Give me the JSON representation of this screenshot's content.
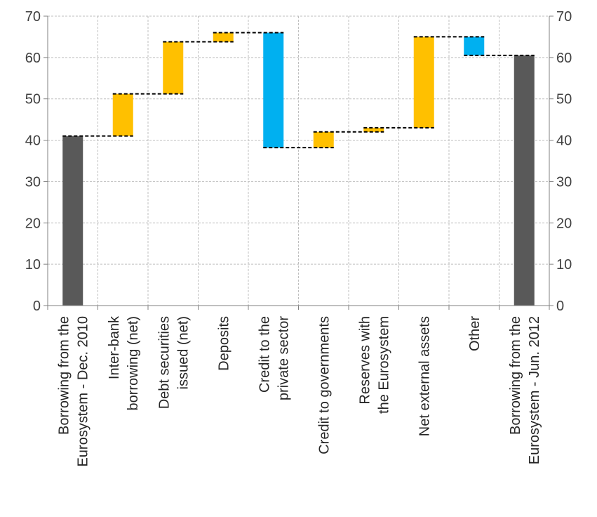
{
  "chart_data": {
    "type": "bar",
    "subtype": "waterfall",
    "title": "",
    "xlabel": "",
    "ylabel": "",
    "ylim": [
      0,
      70
    ],
    "yticks": [
      0,
      10,
      20,
      30,
      40,
      50,
      60,
      70
    ],
    "right_axis_mirrors_left": true,
    "grid": true,
    "categories": [
      {
        "label": [
          "Borrowing from the",
          "Eurosystem - Dec. 2010"
        ]
      },
      {
        "label": [
          "Inter-bank",
          "borrowing (net)"
        ]
      },
      {
        "label": [
          "Debt securities",
          "issued (net)"
        ]
      },
      {
        "label": [
          "Deposits"
        ]
      },
      {
        "label": [
          "Credit to the",
          "private sector"
        ]
      },
      {
        "label": [
          "Credit to governments"
        ]
      },
      {
        "label": [
          "Reserves with",
          "the Eurosystem"
        ]
      },
      {
        "label": [
          "Net external assets"
        ]
      },
      {
        "label": [
          "Other"
        ]
      },
      {
        "label": [
          "Borrowing from the",
          "Eurosystem - Jun. 2012"
        ]
      }
    ],
    "bars": [
      {
        "kind": "total",
        "start": 0,
        "end": 41.0
      },
      {
        "kind": "increase",
        "start": 41.0,
        "end": 51.2
      },
      {
        "kind": "increase",
        "start": 51.2,
        "end": 63.8
      },
      {
        "kind": "increase",
        "start": 63.8,
        "end": 66.0
      },
      {
        "kind": "decrease",
        "start": 66.0,
        "end": 38.2
      },
      {
        "kind": "increase",
        "start": 38.2,
        "end": 42.0
      },
      {
        "kind": "increase",
        "start": 42.0,
        "end": 43.0
      },
      {
        "kind": "increase",
        "start": 43.0,
        "end": 65.0
      },
      {
        "kind": "decrease",
        "start": 65.0,
        "end": 60.5
      },
      {
        "kind": "total",
        "start": 0,
        "end": 60.5
      }
    ],
    "colors": {
      "total": "#595959",
      "increase": "#FFC000",
      "decrease": "#00B0F0",
      "connector": "#000000",
      "grid": "#bfbfbf",
      "axis": "#808080"
    }
  }
}
